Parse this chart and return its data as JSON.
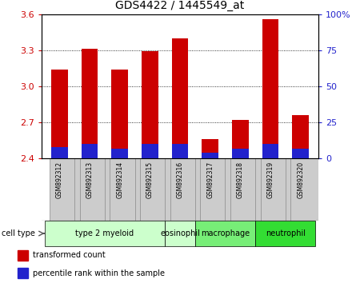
{
  "title": "GDS4422 / 1445549_at",
  "samples": [
    "GSM892312",
    "GSM892313",
    "GSM892314",
    "GSM892315",
    "GSM892316",
    "GSM892317",
    "GSM892318",
    "GSM892319",
    "GSM892320"
  ],
  "transformed_counts": [
    3.14,
    3.31,
    3.14,
    3.29,
    3.4,
    2.56,
    2.72,
    3.56,
    2.76
  ],
  "percentile_ranks_pct": [
    8,
    10,
    7,
    10,
    10,
    4,
    7,
    10,
    7
  ],
  "ymin": 2.4,
  "ymax": 3.6,
  "yticks": [
    2.4,
    2.7,
    3.0,
    3.3,
    3.6
  ],
  "right_yticks_pct": [
    0,
    25,
    50,
    75,
    100
  ],
  "right_yticklabels": [
    "0",
    "25",
    "50",
    "75",
    "100%"
  ],
  "bar_color": "#cc0000",
  "percentile_color": "#2222cc",
  "bar_width": 0.55,
  "cell_type_spans": [
    {
      "label": "type 2 myeloid",
      "xstart": -0.5,
      "xend": 3.5,
      "color": "#ccffcc"
    },
    {
      "label": "eosinophil",
      "xstart": 3.5,
      "xend": 4.5,
      "color": "#ccffcc"
    },
    {
      "label": "macrophage",
      "xstart": 4.5,
      "xend": 6.5,
      "color": "#77ee77"
    },
    {
      "label": "neutrophil",
      "xstart": 6.5,
      "xend": 8.5,
      "color": "#33dd33"
    }
  ],
  "legend_items": [
    {
      "label": "transformed count",
      "color": "#cc0000"
    },
    {
      "label": "percentile rank within the sample",
      "color": "#2222cc"
    }
  ],
  "left_axis_color": "#cc0000",
  "right_axis_color": "#2222cc",
  "grid_lines": [
    2.7,
    3.0,
    3.3
  ]
}
